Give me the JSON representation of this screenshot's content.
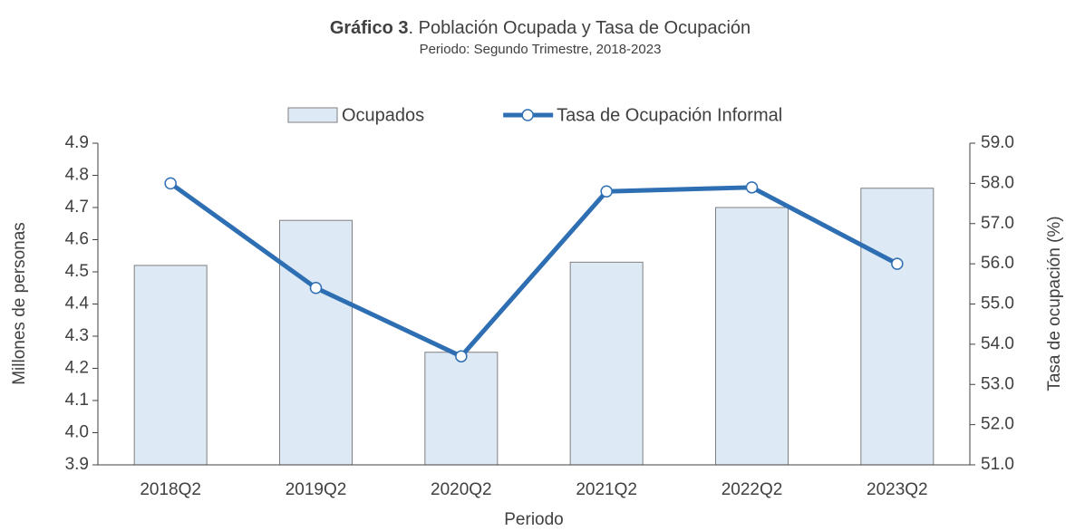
{
  "chart_data": {
    "type": "bar_line",
    "title": [
      "Gráfico 3",
      ". Población Ocupada y Tasa de Ocupación"
    ],
    "subtitle": "Periodo: Segundo Trimestre, 2018-2023",
    "x_label": "Periodo",
    "y_label": "Millones de personas",
    "y2_label": "Tasa de ocupación (%)",
    "categories": [
      "2018Q2",
      "2019Q2",
      "2020Q2",
      "2021Q2",
      "2022Q2",
      "2023Q2"
    ],
    "series": [
      {
        "name": "Ocupados",
        "type": "bar",
        "color": "#dde9f5",
        "values": [
          4.52,
          4.66,
          4.25,
          4.53,
          4.7,
          4.76
        ]
      },
      {
        "name": "Tasa de Ocupación Informal",
        "type": "line",
        "axis": "y2",
        "color": "#2e6fb3",
        "values": [
          58.0,
          55.4,
          53.7,
          57.8,
          57.9,
          56.0
        ]
      }
    ],
    "ylim": [
      3.9,
      4.9
    ],
    "yticks": [
      3.9,
      {
        "value": 4,
        "label": "4.0"
      },
      4.1,
      4.2,
      4.3,
      4.4,
      4.5,
      4.6,
      4.7,
      4.8,
      4.9
    ],
    "y2lim": [
      51,
      59
    ],
    "y2ticks": [
      {
        "value": 51,
        "label": "51.0"
      },
      {
        "value": 52,
        "label": "52.0"
      },
      {
        "value": 53,
        "label": "53.0"
      },
      {
        "value": 54,
        "label": "54.0"
      },
      {
        "value": 55,
        "label": "55.0"
      },
      {
        "value": 56,
        "label": "56.0"
      },
      {
        "value": 57,
        "label": "57.0"
      },
      {
        "value": 58,
        "label": "58.0"
      },
      {
        "value": 59,
        "label": "59.0"
      }
    ],
    "grid": false,
    "legend": "top"
  }
}
